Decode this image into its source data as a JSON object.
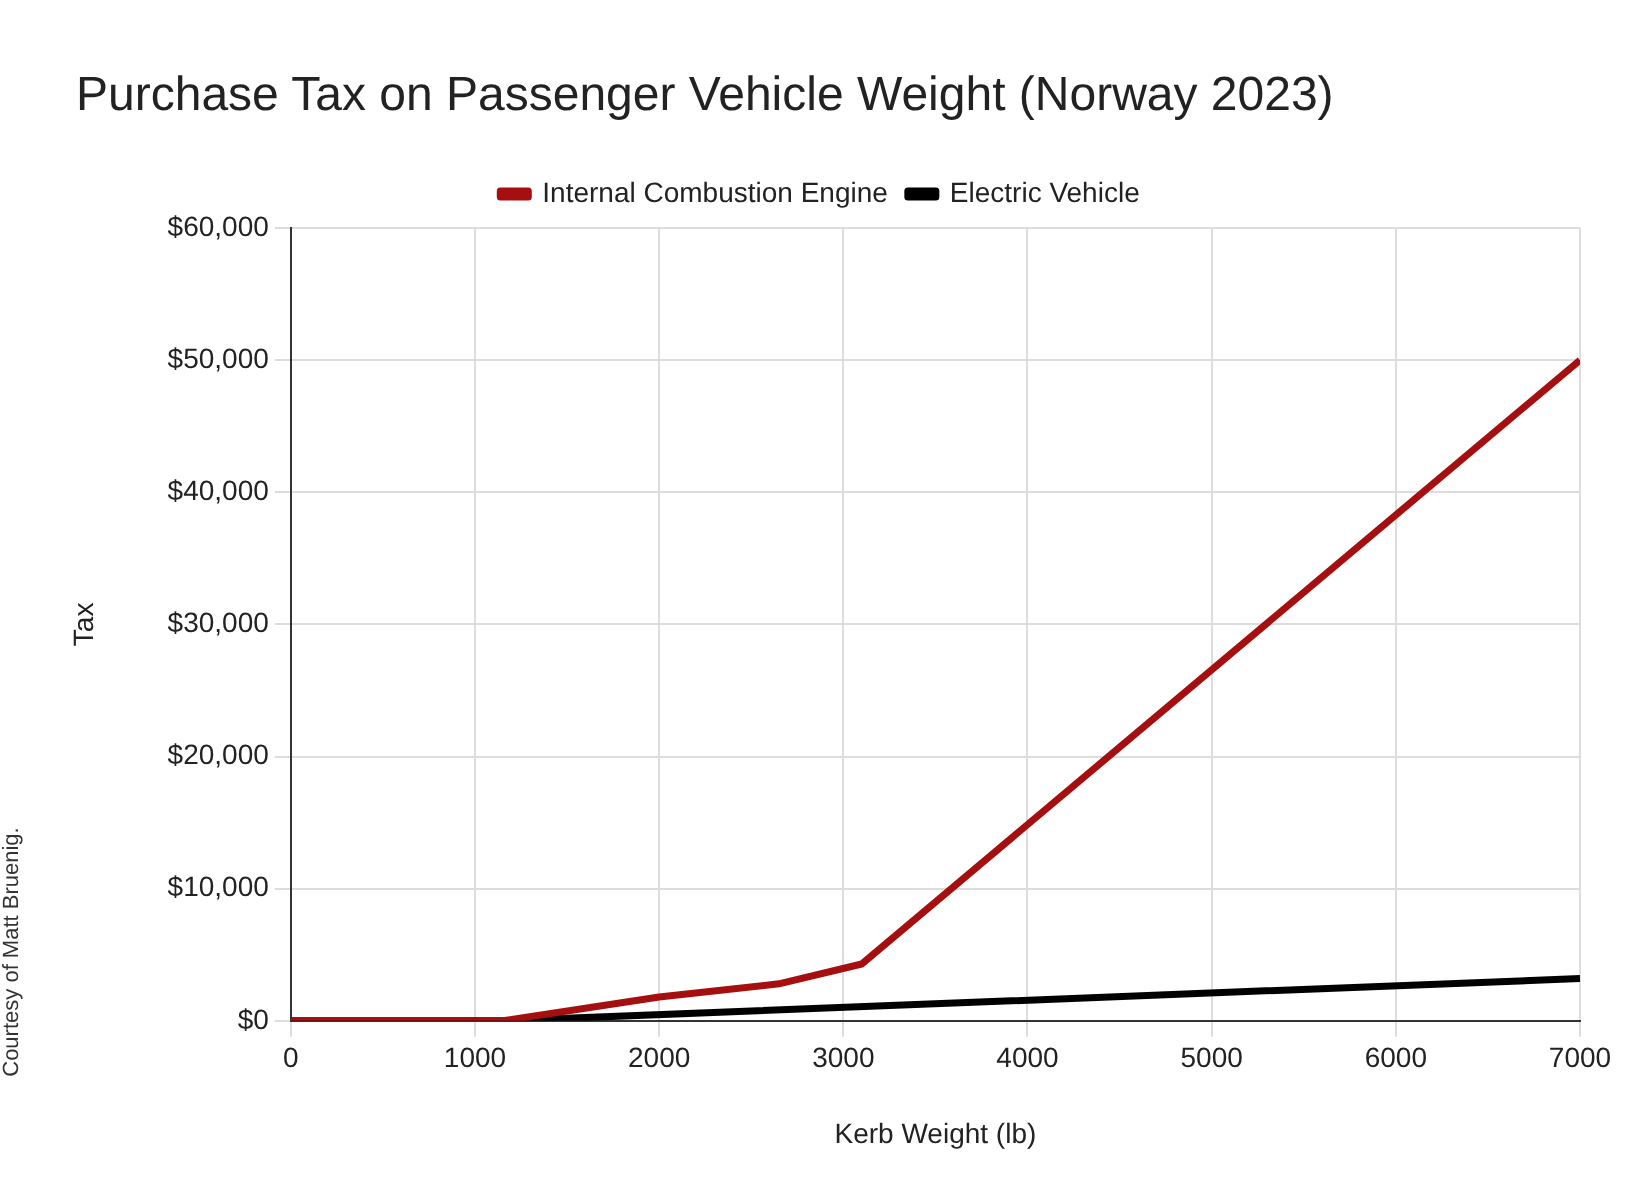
{
  "chart_data": {
    "type": "line",
    "title": "Purchase Tax on Passenger Vehicle Weight (Norway 2023)",
    "xlabel": "Kerb Weight (lb)",
    "ylabel": "Tax",
    "xlim": [
      0,
      7000
    ],
    "xticks": [
      0,
      1000,
      2000,
      3000,
      4000,
      5000,
      6000,
      7000
    ],
    "ylim": [
      0,
      60000
    ],
    "yticks": [
      {
        "value": 0,
        "label": "$0"
      },
      {
        "value": 10000,
        "label": "$10,000"
      },
      {
        "value": 20000,
        "label": "$20,000"
      },
      {
        "value": 30000,
        "label": "$30,000"
      },
      {
        "value": 40000,
        "label": "$40,000"
      },
      {
        "value": 50000,
        "label": "$50,000"
      },
      {
        "value": 60000,
        "label": "$60,000"
      }
    ],
    "grid": true,
    "legend": "top",
    "marker": "none",
    "line_style": "solid",
    "annotations": [
      "Courtesy of Matt Bruenig."
    ],
    "series": [
      {
        "name": "Internal Combustion Engine",
        "color": "#a50f0f",
        "x": [
          0,
          1150,
          2000,
          2650,
          3100,
          7000
        ],
        "values": [
          0,
          0,
          1800,
          2800,
          4300,
          50000
        ]
      },
      {
        "name": "Electric Vehicle",
        "color": "#000000",
        "x": [
          0,
          1150,
          7000
        ],
        "values": [
          0,
          0,
          3200
        ]
      }
    ]
  }
}
